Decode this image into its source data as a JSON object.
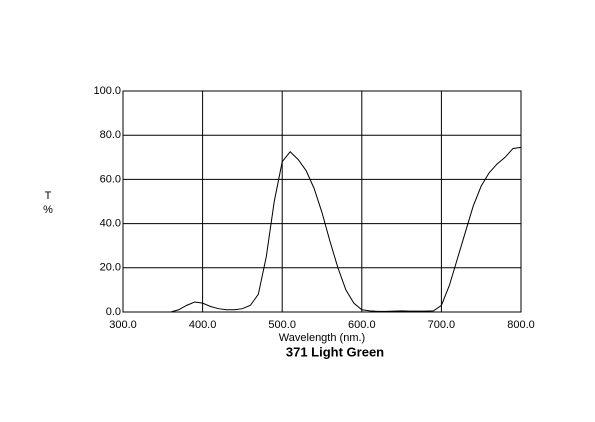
{
  "chart_data": {
    "type": "line",
    "title": "371 Light Green",
    "xlabel": "Wavelength (nm.)",
    "ylabel": [
      "T",
      "%"
    ],
    "x": [
      360,
      370,
      380,
      390,
      400,
      410,
      420,
      430,
      440,
      450,
      460,
      470,
      480,
      490,
      500,
      510,
      520,
      530,
      540,
      550,
      560,
      570,
      580,
      590,
      600,
      610,
      620,
      630,
      640,
      650,
      660,
      670,
      680,
      690,
      700,
      710,
      720,
      730,
      740,
      750,
      760,
      770,
      780,
      790,
      800
    ],
    "series": [
      {
        "color": "#000000",
        "values": [
          0,
          1,
          3,
          4.5,
          4,
          2.5,
          1.5,
          1,
          1,
          1.5,
          3,
          8,
          25,
          50,
          68,
          72.5,
          69,
          64,
          56,
          45,
          32,
          20,
          10,
          4,
          1,
          0.5,
          0.3,
          0.3,
          0.4,
          0.5,
          0.4,
          0.4,
          0.4,
          0.5,
          3,
          12,
          24,
          36,
          48,
          57,
          63,
          67,
          70,
          74,
          74.5
        ]
      }
    ],
    "xlim": [
      300,
      800
    ],
    "ylim": [
      0,
      100
    ],
    "xticks": [
      {
        "value": 300,
        "label": "300.0"
      },
      {
        "value": 400,
        "label": "400.0"
      },
      {
        "value": 500,
        "label": "500.0"
      },
      {
        "value": 600,
        "label": "600.0"
      },
      {
        "value": 700,
        "label": "700.0"
      },
      {
        "value": 800,
        "label": "800.0"
      }
    ],
    "yticks": [
      {
        "value": 0,
        "label": "0.0"
      },
      {
        "value": 20,
        "label": "20.0"
      },
      {
        "value": 40,
        "label": "40.0"
      },
      {
        "value": 60,
        "label": "60.0"
      },
      {
        "value": 80,
        "label": "80.0"
      },
      {
        "value": 100,
        "label": "100.0"
      }
    ],
    "grid": true
  }
}
